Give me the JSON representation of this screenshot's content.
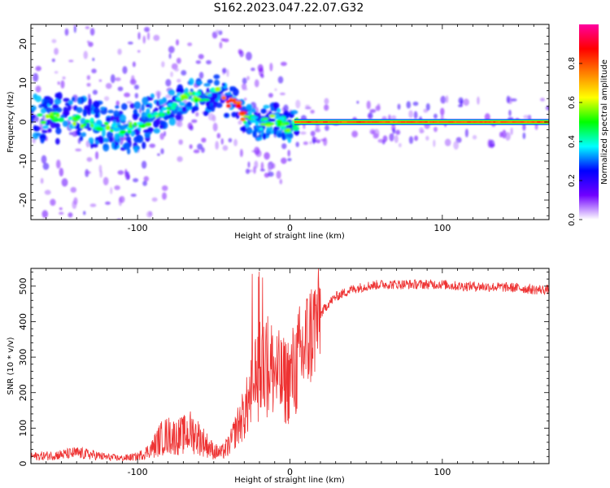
{
  "title": "S162.2023.047.22.07.G32",
  "chart_data": [
    {
      "type": "heatmap",
      "xlabel": "Height of straight line (km)",
      "ylabel": "Frequency (Hz)",
      "xlim": [
        -170,
        170
      ],
      "ylim": [
        -25,
        25
      ],
      "x_ticks": [
        -100,
        0,
        100
      ],
      "y_ticks": [
        -20,
        -10,
        0,
        10,
        20
      ],
      "colorbar": {
        "label": "Normalized spectral amplitude",
        "range": [
          0,
          1
        ],
        "ticks": [
          0.0,
          0.2,
          0.4,
          0.6,
          0.8
        ],
        "tick_labels": [
          "0.0",
          "0.2",
          "0.4",
          "0.6",
          "0.8"
        ],
        "colors": [
          "#ffffff",
          "#7000ff",
          "#0000ff",
          "#00ffff",
          "#00ff00",
          "#ffff00",
          "#ff8000",
          "#ff0000",
          "#ff00a0"
        ]
      },
      "ridge": [
        {
          "x": -165,
          "f": 1
        },
        {
          "x": -150,
          "f": 1
        },
        {
          "x": -135,
          "f": 0
        },
        {
          "x": -120,
          "f": -1
        },
        {
          "x": -110,
          "f": -2
        },
        {
          "x": -100,
          "f": -1
        },
        {
          "x": -90,
          "f": 1
        },
        {
          "x": -80,
          "f": 3
        },
        {
          "x": -72,
          "f": 5
        },
        {
          "x": -65,
          "f": 7
        },
        {
          "x": -55,
          "f": 6
        },
        {
          "x": -47,
          "f": 8
        },
        {
          "x": -40,
          "f": 5
        },
        {
          "x": -35,
          "f": 5
        },
        {
          "x": -30,
          "f": 1
        },
        {
          "x": -25,
          "f": 1
        },
        {
          "x": -20,
          "f": -1
        },
        {
          "x": -15,
          "f": 0
        },
        {
          "x": -10,
          "f": 1
        },
        {
          "x": -5,
          "f": 0
        },
        {
          "x": 0,
          "f": -2
        },
        {
          "x": 5,
          "f": 0
        },
        {
          "x": 170,
          "f": 0
        }
      ],
      "coherent_band": {
        "x_start": 3,
        "x_end": 170,
        "f": 0,
        "amplitude": 0.9
      }
    },
    {
      "type": "line",
      "xlabel": "Height of straight line (km)",
      "ylabel": "SNR (10 * v/v)",
      "xlim": [
        -170,
        170
      ],
      "ylim": [
        0,
        550
      ],
      "x_ticks": [
        -100,
        0,
        100
      ],
      "y_ticks": [
        0,
        100,
        200,
        300,
        400,
        500
      ],
      "line_color": "#ee3333",
      "series": [
        {
          "x": [
            -170,
            -160,
            -150,
            -140,
            -130,
            -120,
            -110,
            -100,
            -95,
            -90,
            -85,
            -80,
            -75,
            -70,
            -65,
            -60,
            -55,
            -50,
            -45,
            -40,
            -35,
            -30,
            -25,
            -20,
            -15,
            -10,
            -5,
            0,
            5,
            10,
            15,
            20,
            25,
            30,
            35,
            40,
            45,
            50,
            60,
            70,
            80,
            90,
            100,
            110,
            120,
            130,
            140,
            150,
            160,
            170
          ],
          "y": [
            20,
            22,
            25,
            30,
            25,
            18,
            15,
            20,
            30,
            45,
            70,
            80,
            75,
            80,
            90,
            75,
            55,
            35,
            30,
            50,
            100,
            140,
            200,
            260,
            280,
            260,
            230,
            240,
            280,
            330,
            380,
            420,
            450,
            470,
            480,
            490,
            495,
            500,
            505,
            505,
            505,
            505,
            505,
            500,
            500,
            498,
            497,
            495,
            490,
            490
          ]
        }
      ]
    }
  ]
}
